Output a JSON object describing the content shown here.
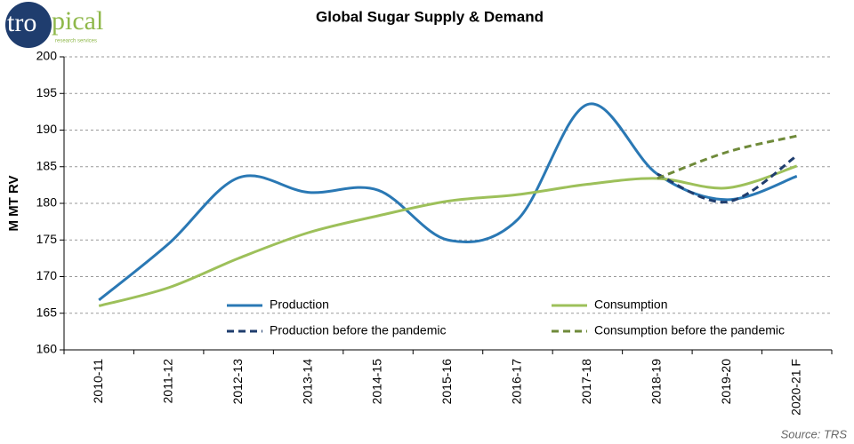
{
  "logo": {
    "part1": "tro",
    "part2": "pical",
    "tagline": "research services"
  },
  "chart_data": {
    "type": "line",
    "title": "Global Sugar Supply & Demand",
    "y_label": "M MT RV",
    "source": "Source: TRS",
    "categories": [
      "2010-11",
      "2011-12",
      "2012-13",
      "2013-14",
      "2014-15",
      "2015-16",
      "2016-17",
      "2017-18",
      "2018-19",
      "2019-20",
      "2020-21 F"
    ],
    "series": [
      {
        "name": "Production",
        "color": "#2a78b4",
        "dashed": false,
        "values": [
          166.8,
          174.5,
          183.5,
          181.5,
          181.8,
          175,
          177.8,
          193.5,
          184,
          180.5,
          183.7
        ]
      },
      {
        "name": "Consumption",
        "color": "#9dc05a",
        "dashed": false,
        "values": [
          166,
          168.5,
          172.5,
          176,
          178.3,
          180.3,
          181.2,
          182.6,
          183.4,
          182.1,
          185.1
        ]
      },
      {
        "name": "Production before the pandemic",
        "color": "#1f3d6e",
        "dashed": true,
        "values": [
          null,
          null,
          null,
          null,
          null,
          null,
          null,
          null,
          184,
          180.2,
          186.5
        ]
      },
      {
        "name": "Consumption before the pandemic",
        "color": "#6f8a3a",
        "dashed": true,
        "values": [
          null,
          null,
          null,
          null,
          null,
          null,
          null,
          null,
          183.4,
          187,
          189.2
        ]
      }
    ],
    "ylim": [
      160,
      200
    ],
    "yticks": [
      160,
      165,
      170,
      175,
      180,
      185,
      190,
      195,
      200
    ],
    "grid": true,
    "smooth": true,
    "legend_position": "lower center"
  }
}
